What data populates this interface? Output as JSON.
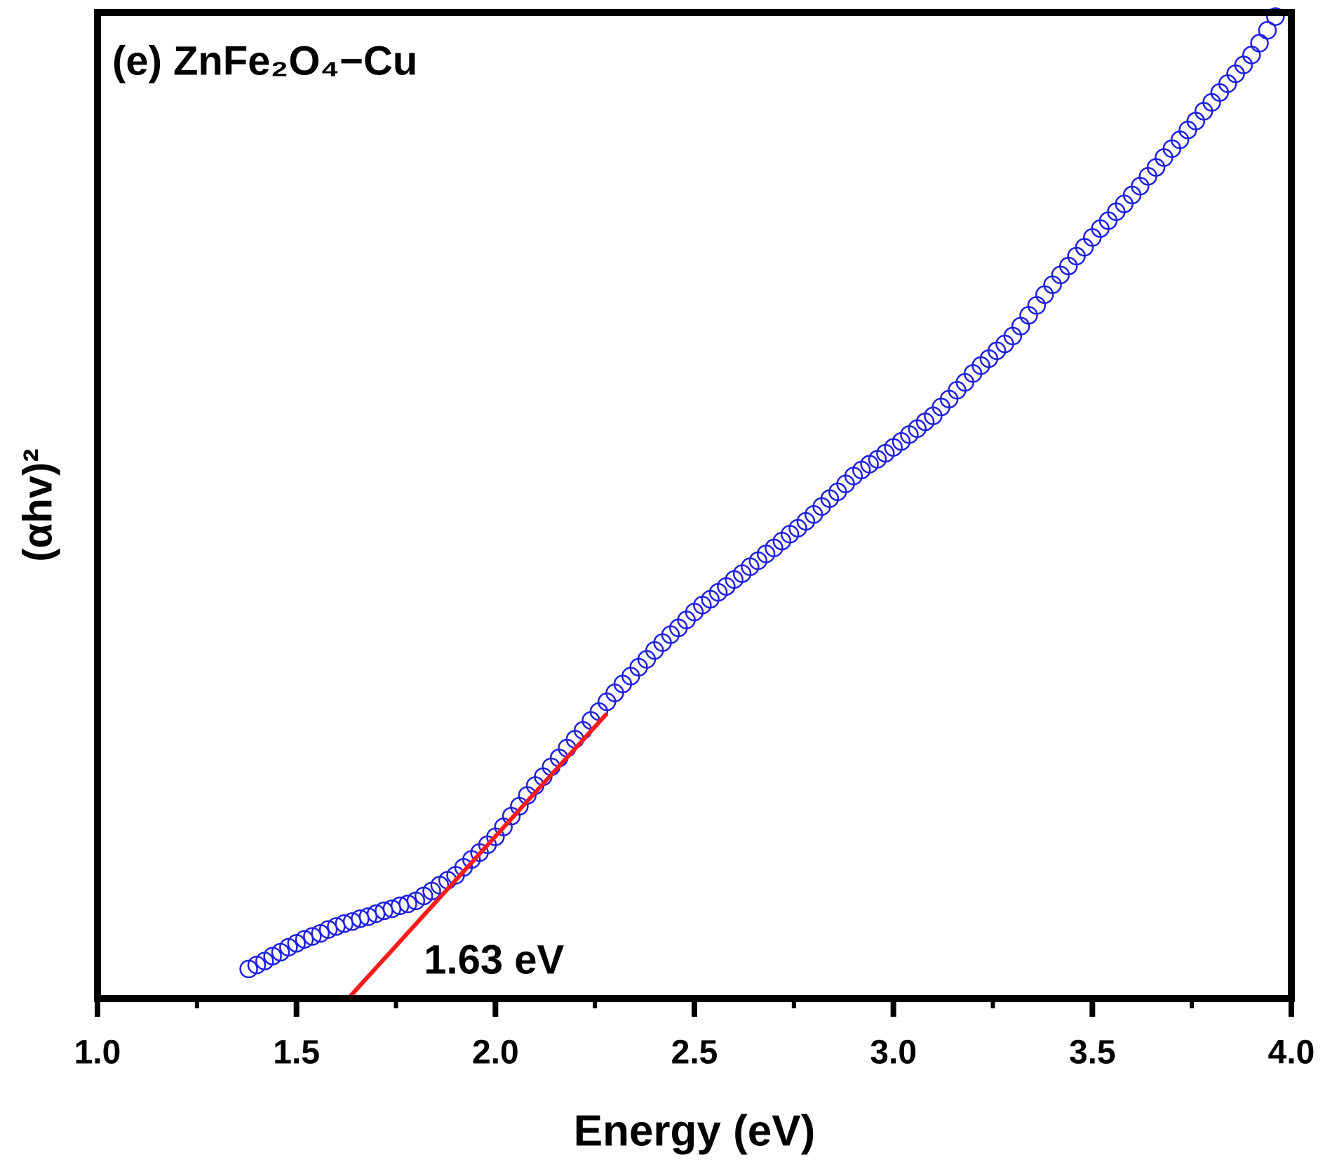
{
  "chart_data": {
    "type": "scatter",
    "title": "(e) ZnFe₂O₄−Cu",
    "x_label": "Energy (eV)",
    "y_label": "(αhv)²",
    "annotation": {
      "text": "1.63 eV",
      "x": 1.82,
      "y": 3.6
    },
    "xlim": [
      1.0,
      4.0
    ],
    "ylim": [
      0,
      100
    ],
    "xticks": [
      {
        "value": 1.0,
        "label": "1.0"
      },
      {
        "value": 1.5,
        "label": "1.5"
      },
      {
        "value": 2.0,
        "label": "2.0"
      },
      {
        "value": 2.5,
        "label": "2.5"
      },
      {
        "value": 3.0,
        "label": "3.0"
      },
      {
        "value": 3.5,
        "label": "3.5"
      },
      {
        "value": 4.0,
        "label": "4.0"
      }
    ],
    "xminor_ticks": [
      1.25,
      1.75,
      2.25,
      2.75,
      3.25,
      3.75
    ],
    "series": [
      {
        "color": "#1f1fe0",
        "x": [
          1.38,
          1.4,
          1.42,
          1.44,
          1.46,
          1.48,
          1.5,
          1.52,
          1.54,
          1.56,
          1.58,
          1.6,
          1.62,
          1.64,
          1.66,
          1.68,
          1.7,
          1.72,
          1.74,
          1.76,
          1.78,
          1.8,
          1.82,
          1.84,
          1.86,
          1.88,
          1.9,
          1.92,
          1.94,
          1.96,
          1.98,
          2.0,
          2.02,
          2.04,
          2.06,
          2.08,
          2.1,
          2.12,
          2.14,
          2.16,
          2.18,
          2.2,
          2.22,
          2.24,
          2.26,
          2.28,
          2.3,
          2.32,
          2.34,
          2.36,
          2.38,
          2.4,
          2.42,
          2.44,
          2.46,
          2.48,
          2.5,
          2.52,
          2.54,
          2.56,
          2.58,
          2.6,
          2.62,
          2.64,
          2.66,
          2.68,
          2.7,
          2.72,
          2.74,
          2.76,
          2.78,
          2.8,
          2.82,
          2.84,
          2.86,
          2.88,
          2.9,
          2.92,
          2.94,
          2.96,
          2.98,
          3.0,
          3.02,
          3.04,
          3.06,
          3.08,
          3.1,
          3.12,
          3.14,
          3.16,
          3.18,
          3.2,
          3.22,
          3.24,
          3.26,
          3.28,
          3.3,
          3.32,
          3.34,
          3.36,
          3.38,
          3.4,
          3.42,
          3.44,
          3.46,
          3.48,
          3.5,
          3.52,
          3.54,
          3.56,
          3.58,
          3.6,
          3.62,
          3.64,
          3.66,
          3.68,
          3.7,
          3.72,
          3.74,
          3.76,
          3.78,
          3.8,
          3.82,
          3.84,
          3.86,
          3.88,
          3.9,
          3.92,
          3.94,
          3.96
        ],
        "values": [
          3.0,
          3.4,
          3.8,
          4.3,
          4.7,
          5.2,
          5.6,
          6.0,
          6.3,
          6.6,
          7.0,
          7.3,
          7.6,
          7.8,
          8.1,
          8.3,
          8.6,
          8.9,
          9.1,
          9.4,
          9.6,
          9.9,
          10.4,
          10.9,
          11.5,
          12.0,
          12.5,
          13.3,
          14.1,
          14.8,
          15.6,
          16.4,
          17.4,
          18.5,
          19.5,
          20.6,
          21.6,
          22.5,
          23.5,
          24.4,
          25.4,
          26.3,
          27.2,
          28.2,
          29.1,
          30.1,
          31.0,
          31.9,
          32.7,
          33.6,
          34.4,
          35.3,
          36.1,
          36.9,
          37.6,
          38.4,
          39.2,
          39.9,
          40.5,
          41.2,
          41.8,
          42.5,
          43.1,
          43.8,
          44.4,
          45.1,
          45.7,
          46.4,
          47.1,
          47.7,
          48.4,
          49.1,
          49.9,
          50.7,
          51.4,
          52.2,
          53.0,
          53.6,
          54.2,
          54.7,
          55.3,
          55.9,
          56.5,
          57.2,
          57.8,
          58.5,
          59.1,
          60.0,
          60.8,
          61.7,
          62.5,
          63.4,
          64.2,
          64.9,
          65.7,
          66.4,
          67.2,
          68.2,
          69.3,
          70.3,
          71.4,
          72.4,
          73.4,
          74.3,
          75.3,
          76.2,
          77.2,
          78.1,
          78.9,
          79.8,
          80.6,
          81.5,
          82.4,
          83.4,
          84.3,
          85.3,
          86.2,
          87.1,
          88.1,
          89.0,
          90.0,
          90.9,
          91.9,
          92.8,
          93.8,
          94.7,
          95.7,
          96.9,
          98.2,
          99.6
        ]
      }
    ],
    "fit_line": {
      "color": "#ff1a1a",
      "x": [
        1.63,
        2.28
      ],
      "values": [
        0,
        28.9
      ]
    }
  }
}
